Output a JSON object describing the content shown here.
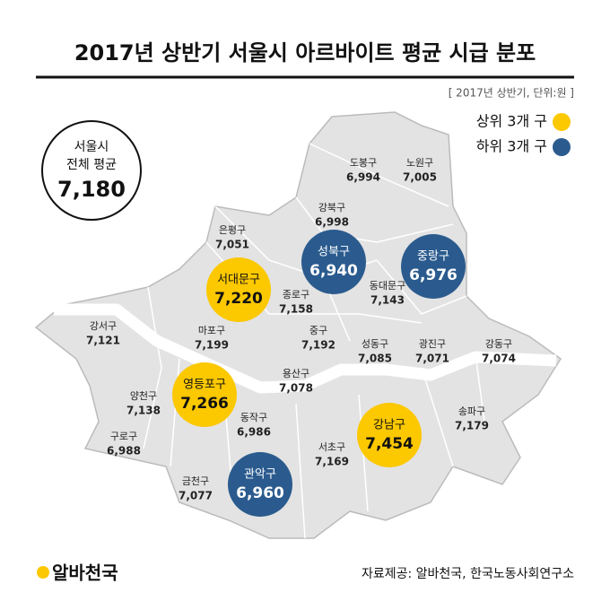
{
  "header": {
    "title": "2017년 상반기 서울시 아르바이트 평균 시급 분포",
    "note": "[ 2017년 상반기, 단위:원 ]"
  },
  "legend": [
    {
      "label": "상위 3개 구",
      "color": "#fcc800"
    },
    {
      "label": "하위 3개 구",
      "color": "#2b5b8e"
    }
  ],
  "average": {
    "lines": [
      "서울시",
      "전체 평균"
    ],
    "value": "7,180"
  },
  "districts": [
    {
      "name": "도봉구",
      "value": "6,994"
    },
    {
      "name": "노원구",
      "value": "7,005"
    },
    {
      "name": "강북구",
      "value": "6,998"
    },
    {
      "name": "은평구",
      "value": "7,051"
    },
    {
      "name": "성북구",
      "value": "6,940",
      "color": "#2b5b8e"
    },
    {
      "name": "중랑구",
      "value": "6,976",
      "color": "#2b5b8e"
    },
    {
      "name": "서대문구",
      "value": "7,220",
      "color": "#fcc800"
    },
    {
      "name": "종로구",
      "value": "7,158"
    },
    {
      "name": "동대문구",
      "value": "7,143"
    },
    {
      "name": "강서구",
      "value": "7,121"
    },
    {
      "name": "마포구",
      "value": "7,199"
    },
    {
      "name": "중구",
      "value": "7,192"
    },
    {
      "name": "성동구",
      "value": "7,085"
    },
    {
      "name": "광진구",
      "value": "7,071"
    },
    {
      "name": "강동구",
      "value": "7,074"
    },
    {
      "name": "용산구",
      "value": "7,078"
    },
    {
      "name": "양천구",
      "value": "7,138"
    },
    {
      "name": "영등포구",
      "value": "7,266",
      "color": "#fcc800"
    },
    {
      "name": "동작구",
      "value": "6,986"
    },
    {
      "name": "강남구",
      "value": "7,454",
      "color": "#fcc800"
    },
    {
      "name": "송파구",
      "value": "7,179"
    },
    {
      "name": "구로구",
      "value": "6,988"
    },
    {
      "name": "서초구",
      "value": "7,169"
    },
    {
      "name": "금천구",
      "value": "7,077"
    },
    {
      "name": "관악구",
      "value": "6,960",
      "color": "#2b5b8e"
    }
  ],
  "footer": {
    "logo": "알바천국",
    "source": "자료제공: 알바천국, 한국노동사회연구소"
  }
}
